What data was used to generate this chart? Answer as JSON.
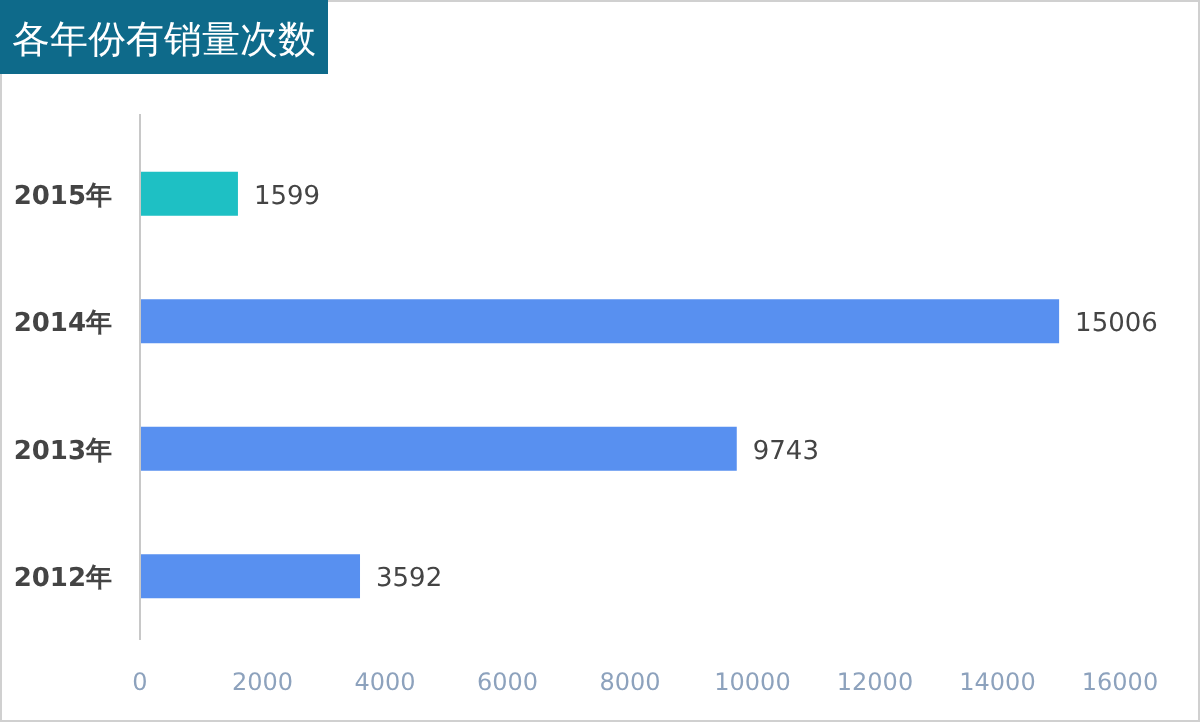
{
  "chart_data": {
    "type": "bar",
    "orientation": "horizontal",
    "title": "各年份有销量次数",
    "categories": [
      "2015年",
      "2014年",
      "2013年",
      "2012年"
    ],
    "values": [
      1599,
      15006,
      9743,
      3592
    ],
    "colors": [
      "#1ec0c4",
      "#5890f0",
      "#5890f0",
      "#5890f0"
    ],
    "xlim": [
      0,
      16000
    ],
    "xticks": [
      0,
      2000,
      4000,
      6000,
      8000,
      10000,
      12000,
      14000,
      16000
    ],
    "data_labels": true,
    "grid": false
  }
}
